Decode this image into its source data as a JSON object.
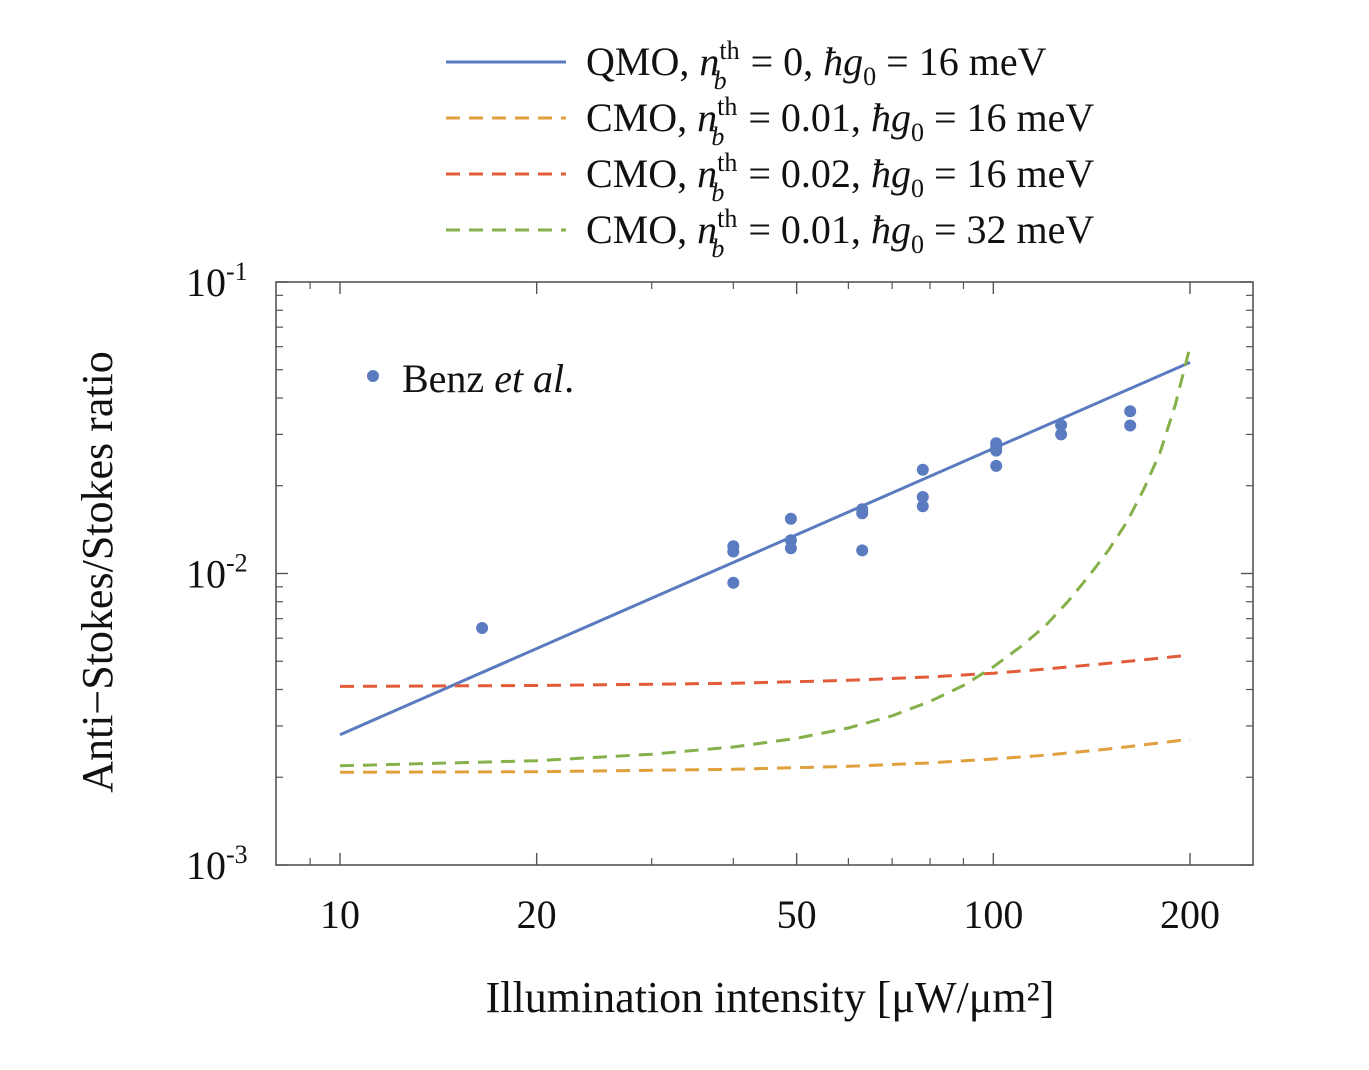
{
  "chart_data": {
    "type": "line",
    "xlabel": "Illumination intensity [μW/μm²]",
    "ylabel": "Anti−Stokes/Stokes ratio",
    "xscale": "log",
    "yscale": "log",
    "xlim": [
      8,
      240
    ],
    "ylim": [
      0.001,
      0.1
    ],
    "x_ticks": [
      {
        "value": 10,
        "label": "10"
      },
      {
        "value": 20,
        "label": "20"
      },
      {
        "value": 50,
        "label": "50"
      },
      {
        "value": 100,
        "label": "100"
      },
      {
        "value": 200,
        "label": "200"
      }
    ],
    "y_ticks": [
      {
        "value": 0.001,
        "base": "10",
        "exp": "-3"
      },
      {
        "value": 0.01,
        "base": "10",
        "exp": "-2"
      },
      {
        "value": 0.1,
        "base": "10",
        "exp": "-1"
      }
    ],
    "grid": false,
    "legend_position": "top-right, outside plot",
    "series": [
      {
        "name": "QMO, n_b^th = 0, ħg₀ = 16 meV",
        "legend": {
          "model": "QMO",
          "nth": "0",
          "g0": "16"
        },
        "color": "#5b7bc0",
        "style": "solid",
        "x": [
          10,
          200
        ],
        "y": [
          0.0028,
          0.053
        ]
      },
      {
        "name": "CMO, n_b^th = 0.01, ħg₀ = 16 meV",
        "legend": {
          "model": "CMO",
          "nth": "0.01",
          "g0": "16"
        },
        "color": "#e0a03c",
        "style": "dashed",
        "x": [
          10,
          20,
          40,
          60,
          80,
          100,
          120,
          150,
          200
        ],
        "y": [
          0.00208,
          0.00209,
          0.00213,
          0.00218,
          0.00224,
          0.00231,
          0.00238,
          0.0025,
          0.0027
        ]
      },
      {
        "name": "CMO, n_b^th = 0.02, ħg₀ = 16 meV",
        "legend": {
          "model": "CMO",
          "nth": "0.02",
          "g0": "16"
        },
        "color": "#e25c3a",
        "style": "dashed",
        "x": [
          10,
          20,
          40,
          60,
          80,
          100,
          120,
          150,
          200
        ],
        "y": [
          0.0041,
          0.00413,
          0.0042,
          0.0043,
          0.00442,
          0.00455,
          0.0047,
          0.00492,
          0.00525
        ]
      },
      {
        "name": "CMO, n_b^th = 0.01, ħg₀ = 32 meV",
        "legend": {
          "model": "CMO",
          "nth": "0.01",
          "g0": "32"
        },
        "color": "#85b04a",
        "style": "dashed",
        "x": [
          10,
          20,
          30,
          40,
          50,
          60,
          70,
          80,
          90,
          100,
          110,
          120,
          130,
          140,
          150,
          160,
          170,
          180,
          190,
          200
        ],
        "y": [
          0.00219,
          0.00228,
          0.0024,
          0.00254,
          0.00272,
          0.00295,
          0.00325,
          0.00364,
          0.00413,
          0.00478,
          0.0056,
          0.0066,
          0.008,
          0.0098,
          0.012,
          0.015,
          0.0195,
          0.026,
          0.038,
          0.06
        ]
      }
    ],
    "scatter": {
      "name": "Benz et al.",
      "color": "#5b7bc0",
      "points": [
        [
          16.5,
          0.0065
        ],
        [
          40,
          0.0124
        ],
        [
          40,
          0.0119
        ],
        [
          40,
          0.0093
        ],
        [
          49,
          0.0154
        ],
        [
          49,
          0.013
        ],
        [
          49,
          0.0122
        ],
        [
          63,
          0.0166
        ],
        [
          63,
          0.0161
        ],
        [
          63,
          0.012
        ],
        [
          78,
          0.0227
        ],
        [
          78,
          0.0183
        ],
        [
          78,
          0.017
        ],
        [
          101,
          0.028
        ],
        [
          101,
          0.0273
        ],
        [
          101,
          0.0264
        ],
        [
          101,
          0.0234
        ],
        [
          127,
          0.0323
        ],
        [
          127,
          0.03
        ],
        [
          162,
          0.036
        ],
        [
          162,
          0.0322
        ]
      ]
    }
  }
}
